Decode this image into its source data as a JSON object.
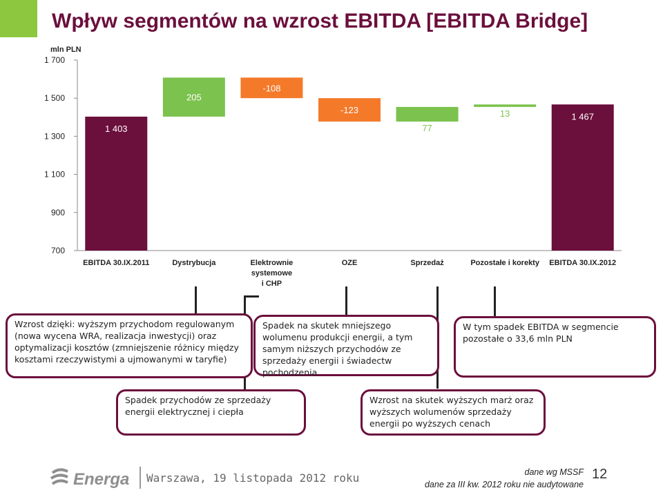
{
  "title": "Wpływ segmentów na wzrost EBITDA [EBITDA Bridge]",
  "colors": {
    "accent": "#8dc63f",
    "primary": "#6b0f3c",
    "increase": "#7cc24e",
    "decrease": "#f47a2a",
    "total": "#6b0f3c"
  },
  "chart_data": {
    "type": "bar",
    "subtype": "waterfall",
    "ylabel": "mln PLN",
    "ylim": [
      700,
      1700
    ],
    "yticks": [
      700,
      900,
      1100,
      1300,
      1500,
      1700
    ],
    "ytick_labels": [
      "700",
      "900",
      "1 100",
      "1 300",
      "1 500",
      "1 700"
    ],
    "categories": [
      "EBITDA 30.IX.2011",
      "Dystrybucja",
      "Elektrownie systemowe i CHP",
      "OZE",
      "Sprzedaż",
      "Pozostałe i korekty",
      "EBITDA 30.IX.2012"
    ],
    "category_labels": [
      [
        "EBITDA 30.IX.2011"
      ],
      [
        "Dystrybucja"
      ],
      [
        "Elektrownie",
        "systemowe",
        "i CHP"
      ],
      [
        "OZE"
      ],
      [
        "Sprzedaż"
      ],
      [
        "Pozostałe i korekty"
      ],
      [
        "EBITDA 30.IX.2012"
      ]
    ],
    "kinds": [
      "total",
      "increase",
      "decrease",
      "decrease",
      "increase",
      "increase",
      "total"
    ],
    "values": [
      1403,
      205,
      -108,
      -123,
      77,
      13,
      1467
    ],
    "value_labels": [
      "1 403",
      "205",
      "-108",
      "-123",
      "77",
      "13",
      "1 467"
    ],
    "grid": false,
    "legend": "none"
  },
  "callouts": [
    {
      "id": "dystrybucja",
      "text": "Wzrost dzięki: wyższym przychodom regulowanym (nowa wycena WRA, realizacja inwestycji) oraz optymalizacji kosztów (zmniejszenie różnicy między kosztami rzeczywistymi a ujmowanymi w taryfie)"
    },
    {
      "id": "elektrownie",
      "text": "Spadek przychodów ze sprzedaży energii elektrycznej i ciepła"
    },
    {
      "id": "oze",
      "text": "Spadek na skutek mniejszego wolumenu produkcji energii, a tym samym niższych przychodów ze sprzedaży energii i świadectw pochodzenia"
    },
    {
      "id": "sprzedaz",
      "text": "Wzrost na skutek wyższych marż oraz wyższych wolumenów sprzedaży energii po wyższych cenach"
    },
    {
      "id": "pozostale",
      "text": "W tym spadek EBITDA w segmencie pozostałe o 33,6 mln PLN"
    }
  ],
  "footer": {
    "logo_text": "Energa",
    "city_date": "Warszawa, 19 listopada 2012 roku",
    "note_line1": "dane wg MSSF",
    "note_line2": "dane za III kw. 2012 roku nie audytowane",
    "page_number": "12"
  }
}
